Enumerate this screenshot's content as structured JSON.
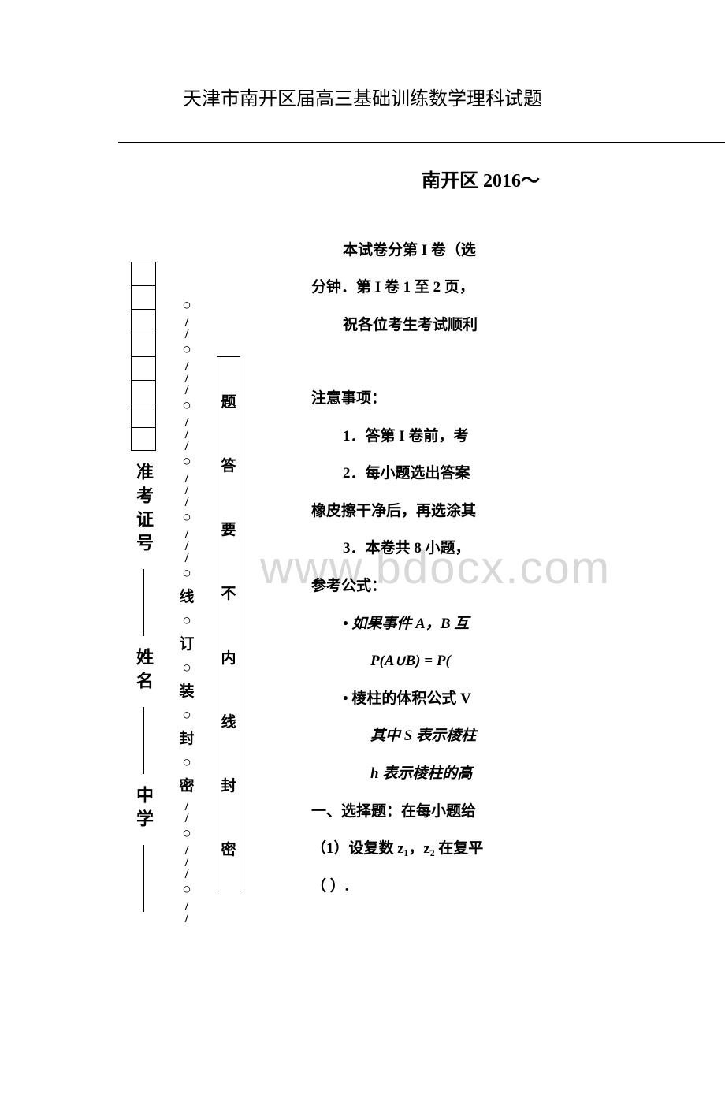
{
  "page_title": "天津市南开区届高三基础训练数学理科试题",
  "region_header": "南开区 2016～",
  "watermark_text": "www.bdocx.com",
  "vertical_info": {
    "school_label": "中学",
    "name_label": "姓名",
    "id_label": "准考证号",
    "box_count": 8
  },
  "perforation": {
    "chars": [
      "密",
      "封",
      "装",
      "订",
      "线"
    ]
  },
  "inner_box": {
    "chars": [
      "密",
      "封",
      "线",
      "内",
      "不",
      "要",
      "答",
      "题"
    ]
  },
  "body": {
    "line1": "本试卷分第 I 卷（选",
    "line2": "分钟．第 I 卷 1 至 2 页，",
    "line3": "祝各位考生考试顺利",
    "notice_title": "注意事项：",
    "notice1": "1．答第 I 卷前，考",
    "notice2": "2．每小题选出答案",
    "notice2b": "橡皮擦干净后，再选涂其",
    "notice3": "3．本卷共 8 小题，",
    "formula_title": "参考公式：",
    "formula1": "• 如果事件 A，B 互",
    "formula1b": "P(A∪B) = P(",
    "formula2": "• 棱柱的体积公式 V",
    "formula2b": "其中 S 表示棱柱",
    "formula2c": "h 表示棱柱的高",
    "section1": "一、选择题：在每小题给",
    "q1": "（1）设复数 z₁，z₂ 在复平",
    "q1_paren": "（  ）."
  },
  "styles": {
    "background": "#ffffff",
    "text_color": "#000000",
    "watermark_color": "#d8d8d8",
    "title_fontsize": 24,
    "body_fontsize": 19,
    "region_fontsize": 24
  }
}
